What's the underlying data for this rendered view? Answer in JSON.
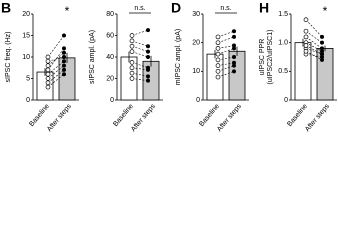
{
  "chart_data": [
    {
      "type": "bar",
      "panel": "B",
      "ylabel": [
        "sIPSC freq. (Hz)"
      ],
      "categories": [
        "Baseline",
        "After steps"
      ],
      "values": [
        6.5,
        9.8
      ],
      "errors": [
        0.9,
        1.2
      ],
      "colors": [
        "#ffffff",
        "#c8c8c8"
      ],
      "points": {
        "baseline": [
          3,
          5,
          6,
          7,
          8,
          9,
          10,
          4
        ],
        "after": [
          6,
          8,
          9,
          12,
          11,
          10,
          15,
          7
        ]
      },
      "ylim": [
        0,
        20
      ],
      "yticks": [
        0,
        5,
        10,
        15,
        20
      ],
      "annotation": "*"
    },
    {
      "type": "bar",
      "ylabel": [
        "sIPSC ampl. (pA)"
      ],
      "categories": [
        "Baseline",
        "After steps"
      ],
      "values": [
        40,
        36
      ],
      "errors": [
        5,
        5
      ],
      "colors": [
        "#ffffff",
        "#c8c8c8"
      ],
      "points": {
        "baseline": [
          30,
          45,
          55,
          60,
          35,
          25,
          50,
          20
        ],
        "after": [
          28,
          40,
          50,
          65,
          30,
          22,
          45,
          18
        ]
      },
      "ylim": [
        0,
        80
      ],
      "yticks": [
        0,
        20,
        40,
        60,
        80
      ],
      "annotation": "n.s."
    },
    {
      "type": "bar",
      "panel": "D",
      "ylabel": [
        "mIPSC ampl. (pA)"
      ],
      "categories": [
        "Baseline",
        "After steps"
      ],
      "values": [
        16,
        17
      ],
      "errors": [
        1.5,
        1.6
      ],
      "colors": [
        "#ffffff",
        "#c8c8c8"
      ],
      "points": {
        "baseline": [
          10,
          14,
          18,
          22,
          12,
          20,
          16,
          8
        ],
        "after": [
          12,
          15,
          19,
          24,
          13,
          22,
          18,
          10
        ]
      },
      "ylim": [
        0,
        30
      ],
      "yticks": [
        0,
        10,
        20,
        30
      ],
      "annotation": "n.s."
    },
    {
      "type": "bar",
      "panel": "H",
      "ylabel": [
        "uIPSC PPR",
        "(uIPSC2/uIPSC1)"
      ],
      "categories": [
        "Baseline",
        "After steps"
      ],
      "values": [
        1.0,
        0.9
      ],
      "errors": [
        0.07,
        0.05
      ],
      "colors": [
        "#ffffff",
        "#c8c8c8"
      ],
      "points": {
        "baseline": [
          1.4,
          1.2,
          1.0,
          0.9,
          0.8,
          1.1,
          0.95,
          0.85
        ],
        "after": [
          1.1,
          1.0,
          0.85,
          0.8,
          0.75,
          0.9,
          0.8,
          0.7
        ]
      },
      "ylim": [
        0,
        1.5
      ],
      "yticks": [
        0,
        {
          "value": 0.5,
          "label": "0.5"
        },
        {
          "value": 1,
          "label": "1.0"
        },
        1.5
      ],
      "annotation": "*"
    }
  ]
}
